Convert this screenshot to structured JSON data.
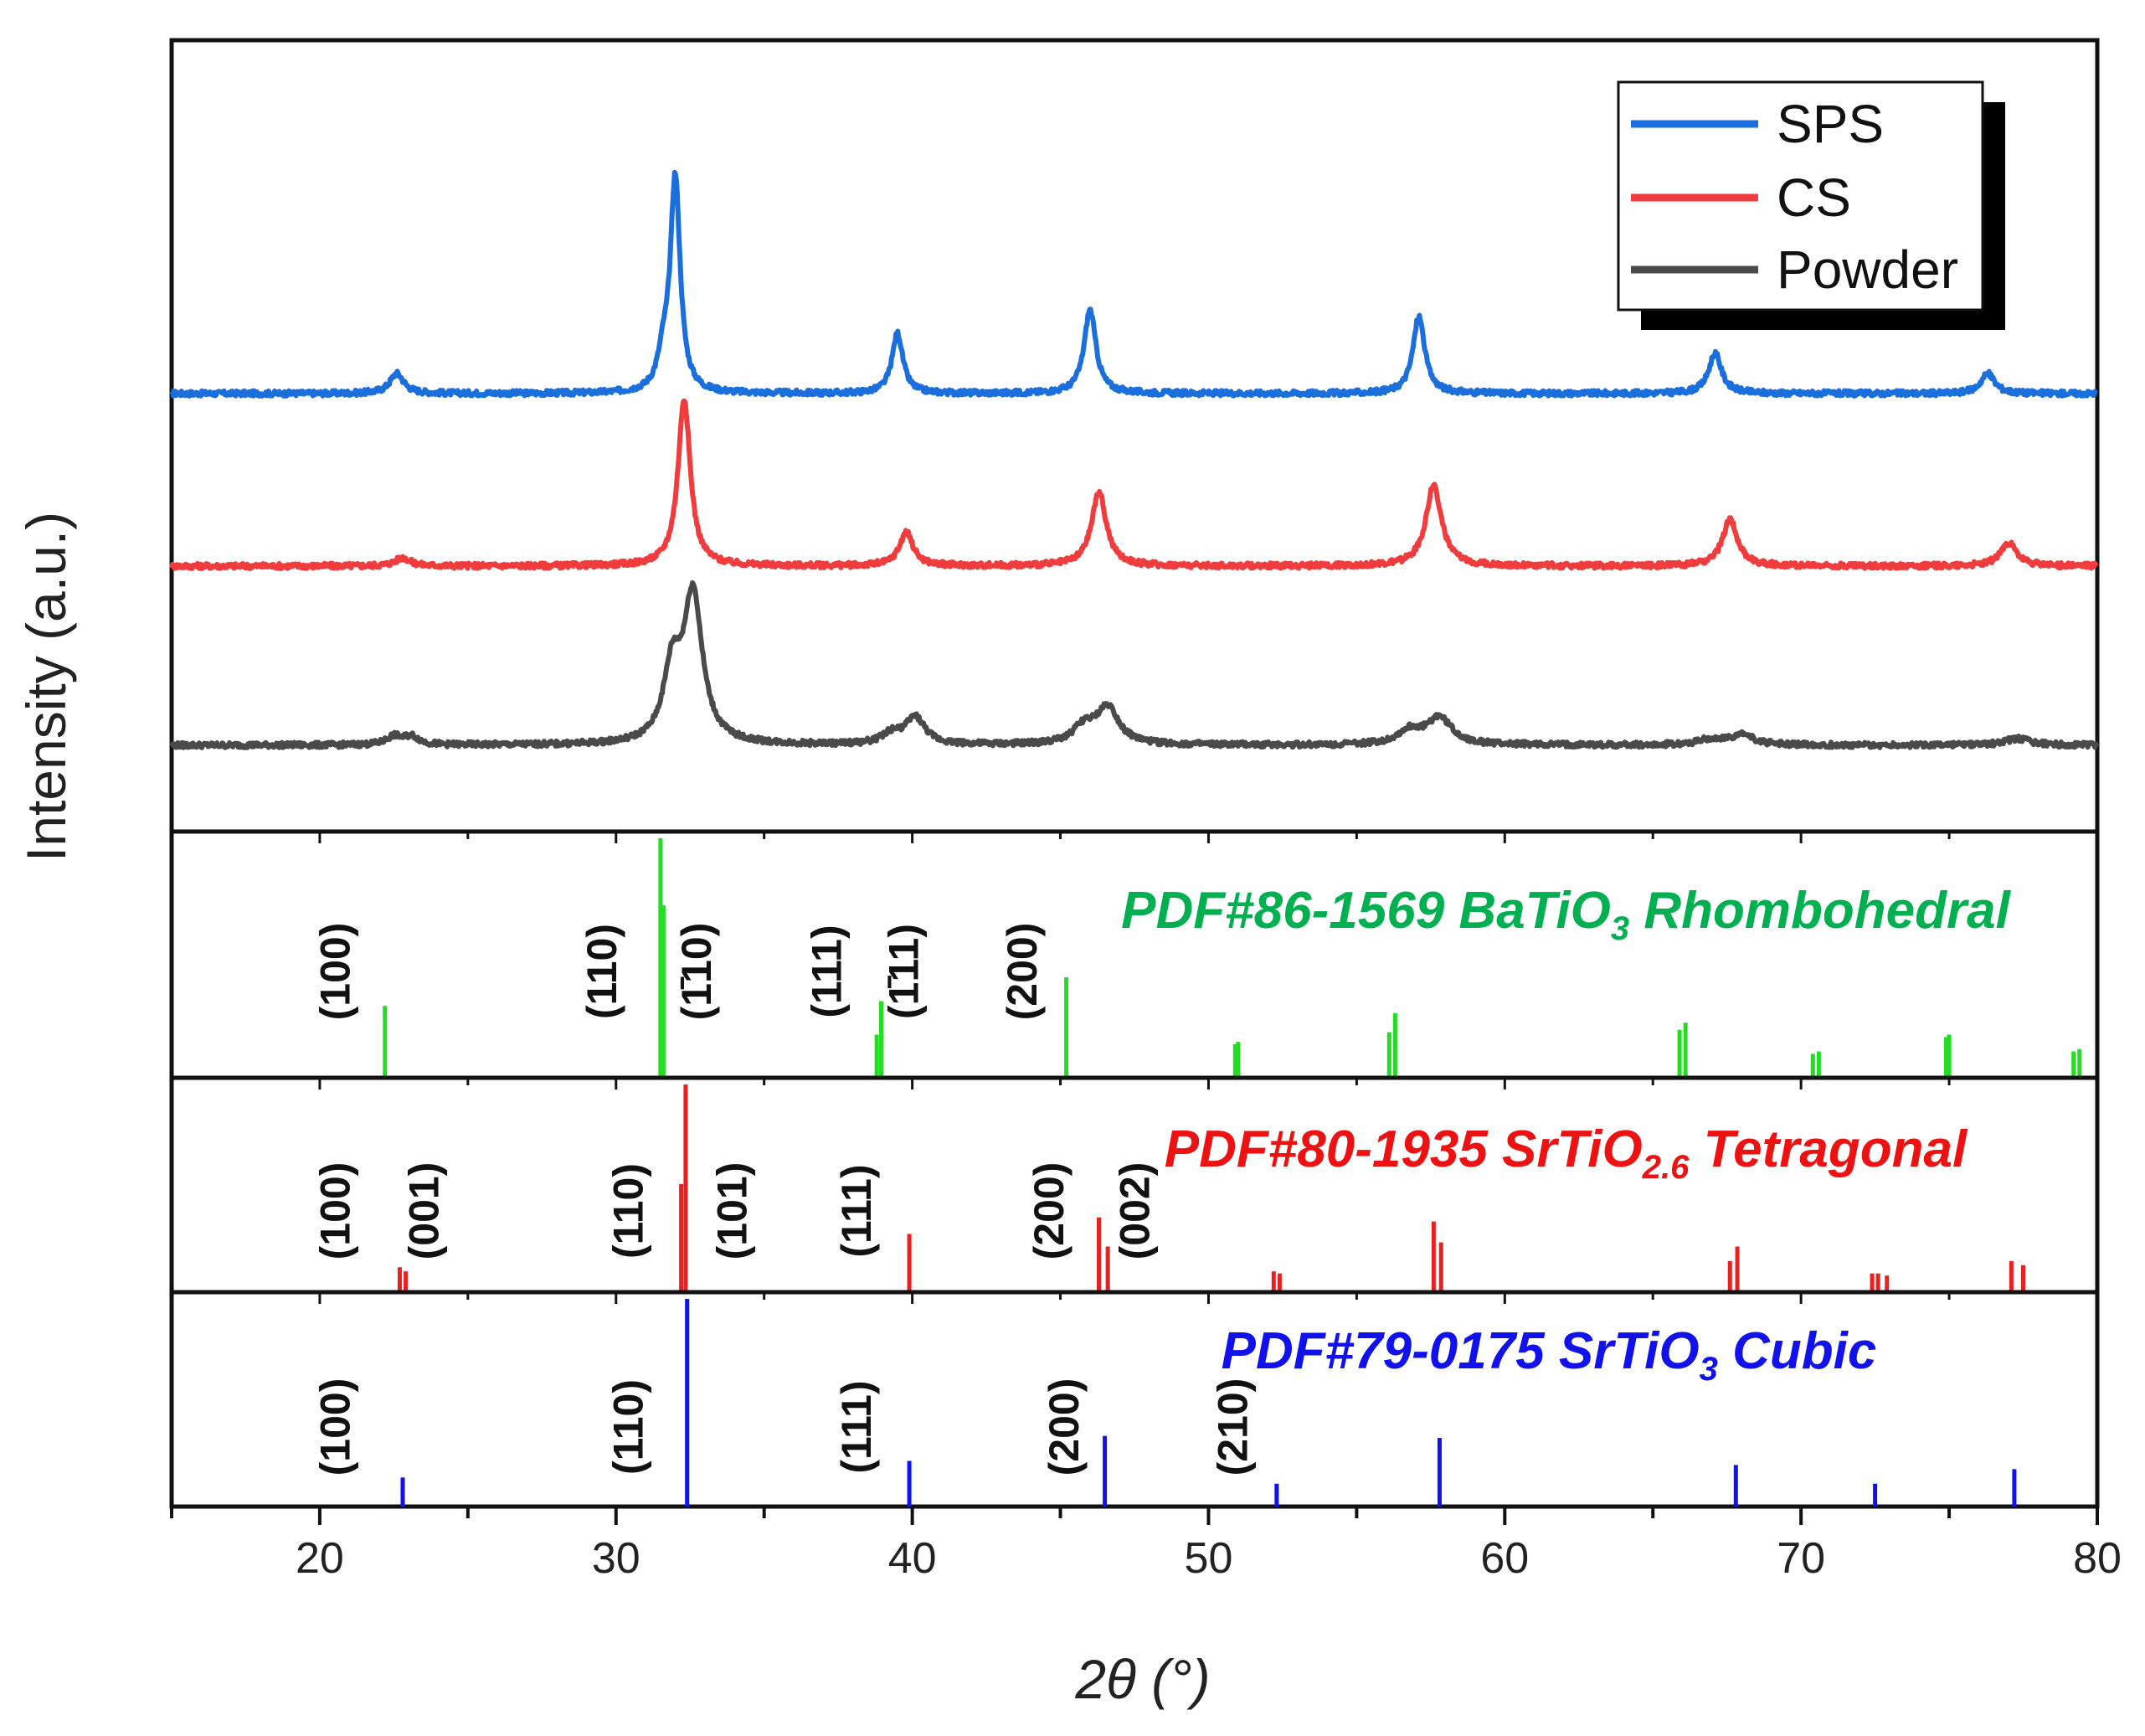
{
  "chart_data": {
    "type": "line",
    "title": "",
    "xlabel": "2θ (°)",
    "ylabel": "Intensity (a.u.)",
    "xlim": [
      15,
      80
    ],
    "x_ticks": [
      20,
      30,
      40,
      50,
      60,
      70,
      80
    ],
    "legend": {
      "position": "top-right",
      "entries": [
        {
          "name": "SPS",
          "color": "#1a6fdc"
        },
        {
          "name": "CS",
          "color": "#f03c3c"
        },
        {
          "name": "Powder",
          "color": "#4a4a4a"
        }
      ]
    },
    "series": [
      {
        "name": "SPS",
        "color": "#1a6fdc",
        "baseline": 0,
        "peaks": [
          {
            "x": 22.6,
            "h": 12,
            "w": 0.28
          },
          {
            "x": 31.6,
            "h": 18,
            "w": 0.22
          },
          {
            "x": 32.0,
            "h": 128,
            "w": 0.2
          },
          {
            "x": 39.5,
            "h": 36,
            "w": 0.22
          },
          {
            "x": 46.0,
            "h": 50,
            "w": 0.24
          },
          {
            "x": 57.1,
            "h": 46,
            "w": 0.24
          },
          {
            "x": 67.1,
            "h": 24,
            "w": 0.26
          },
          {
            "x": 76.3,
            "h": 12,
            "w": 0.28
          }
        ]
      },
      {
        "name": "CS",
        "color": "#f03c3c",
        "baseline": 0,
        "peaks": [
          {
            "x": 22.8,
            "h": 5,
            "w": 0.3
          },
          {
            "x": 32.3,
            "h": 100,
            "w": 0.25
          },
          {
            "x": 39.8,
            "h": 20,
            "w": 0.28
          },
          {
            "x": 46.3,
            "h": 44,
            "w": 0.3
          },
          {
            "x": 57.6,
            "h": 48,
            "w": 0.32
          },
          {
            "x": 67.6,
            "h": 28,
            "w": 0.3
          },
          {
            "x": 77.0,
            "h": 14,
            "w": 0.32
          }
        ]
      },
      {
        "name": "Powder",
        "color": "#4a4a4a",
        "baseline": 0,
        "peaks": [
          {
            "x": 22.5,
            "h": 5,
            "w": 0.3
          },
          {
            "x": 23.1,
            "h": 5,
            "w": 0.3
          },
          {
            "x": 31.9,
            "h": 42,
            "w": 0.35
          },
          {
            "x": 32.6,
            "h": 88,
            "w": 0.38
          },
          {
            "x": 39.3,
            "h": 6,
            "w": 0.4
          },
          {
            "x": 40.1,
            "h": 16,
            "w": 0.4
          },
          {
            "x": 45.8,
            "h": 10,
            "w": 0.45
          },
          {
            "x": 46.6,
            "h": 22,
            "w": 0.45
          },
          {
            "x": 56.8,
            "h": 8,
            "w": 0.5
          },
          {
            "x": 57.8,
            "h": 16,
            "w": 0.5
          },
          {
            "x": 66.9,
            "h": 3,
            "w": 0.5
          },
          {
            "x": 68.0,
            "h": 6,
            "w": 0.5
          },
          {
            "x": 77.3,
            "h": 4,
            "w": 0.5
          }
        ]
      }
    ],
    "reference_patterns": [
      {
        "label_main": "PDF#86-1569 BaTiO",
        "label_sub": "3",
        "label_tail": " Rhombohedral",
        "color": "#22dd22",
        "label_color": "#00b050",
        "lines": [
          {
            "x": 22.2,
            "h": 0.3
          },
          {
            "x": 31.5,
            "h": 1.0
          },
          {
            "x": 31.6,
            "h": 0.72
          },
          {
            "x": 38.8,
            "h": 0.18
          },
          {
            "x": 38.95,
            "h": 0.32
          },
          {
            "x": 45.2,
            "h": 0.42
          },
          {
            "x": 50.9,
            "h": 0.14
          },
          {
            "x": 51.0,
            "h": 0.15
          },
          {
            "x": 56.1,
            "h": 0.19
          },
          {
            "x": 56.3,
            "h": 0.27
          },
          {
            "x": 65.9,
            "h": 0.2
          },
          {
            "x": 66.1,
            "h": 0.23
          },
          {
            "x": 70.4,
            "h": 0.1
          },
          {
            "x": 70.6,
            "h": 0.11
          },
          {
            "x": 74.9,
            "h": 0.17
          },
          {
            "x": 75.0,
            "h": 0.18
          },
          {
            "x": 79.2,
            "h": 0.11
          },
          {
            "x": 79.4,
            "h": 0.12
          }
        ],
        "hkl": [
          {
            "text": "(100)",
            "x": 21.0
          },
          {
            "text": "(110)",
            "x": 30.0
          },
          {
            "text": "(1̄10)",
            "x": 33.2
          },
          {
            "text": "(111)",
            "x": 37.6
          },
          {
            "text": "(1̄11)",
            "x": 40.2
          },
          {
            "text": "(200)",
            "x": 44.2
          }
        ]
      },
      {
        "label_main": "PDF#80-1935 SrTiO",
        "label_sub": "2.6",
        "label_tail": " Tetragonal",
        "color": "#e82020",
        "label_color": "#ee1111",
        "lines": [
          {
            "x": 22.7,
            "h": 0.12
          },
          {
            "x": 22.9,
            "h": 0.1
          },
          {
            "x": 32.2,
            "h": 0.52
          },
          {
            "x": 32.35,
            "h": 1.0
          },
          {
            "x": 39.9,
            "h": 0.28
          },
          {
            "x": 46.3,
            "h": 0.36
          },
          {
            "x": 46.6,
            "h": 0.22
          },
          {
            "x": 52.2,
            "h": 0.1
          },
          {
            "x": 52.4,
            "h": 0.09
          },
          {
            "x": 57.6,
            "h": 0.34
          },
          {
            "x": 57.85,
            "h": 0.24
          },
          {
            "x": 67.6,
            "h": 0.15
          },
          {
            "x": 67.85,
            "h": 0.22
          },
          {
            "x": 72.4,
            "h": 0.09
          },
          {
            "x": 72.6,
            "h": 0.09
          },
          {
            "x": 72.9,
            "h": 0.08
          },
          {
            "x": 77.1,
            "h": 0.15
          },
          {
            "x": 77.5,
            "h": 0.13
          }
        ],
        "hkl": [
          {
            "text": "(100)",
            "x": 21.0
          },
          {
            "text": "(001)",
            "x": 24.0
          },
          {
            "text": "(110)",
            "x": 30.9
          },
          {
            "text": "(101)",
            "x": 34.4
          },
          {
            "text": "(111)",
            "x": 38.6
          },
          {
            "text": "(200)",
            "x": 45.1
          },
          {
            "text": "(002)",
            "x": 48.0
          }
        ]
      },
      {
        "label_main": "PDF#79-0175 SrTiO",
        "label_sub": "3",
        "label_tail": " Cubic",
        "color": "#1111ee",
        "label_color": "#1111ee",
        "lines": [
          {
            "x": 22.8,
            "h": 0.14
          },
          {
            "x": 32.4,
            "h": 1.0
          },
          {
            "x": 39.9,
            "h": 0.22
          },
          {
            "x": 46.5,
            "h": 0.34
          },
          {
            "x": 52.3,
            "h": 0.11
          },
          {
            "x": 57.8,
            "h": 0.33
          },
          {
            "x": 67.8,
            "h": 0.2
          },
          {
            "x": 72.5,
            "h": 0.11
          },
          {
            "x": 77.2,
            "h": 0.18
          }
        ],
        "hkl": [
          {
            "text": "(100)",
            "x": 21.0
          },
          {
            "text": "(110)",
            "x": 30.9
          },
          {
            "text": "(111)",
            "x": 38.6
          },
          {
            "text": "(200)",
            "x": 45.6
          },
          {
            "text": "(210)",
            "x": 51.3
          }
        ]
      }
    ]
  }
}
